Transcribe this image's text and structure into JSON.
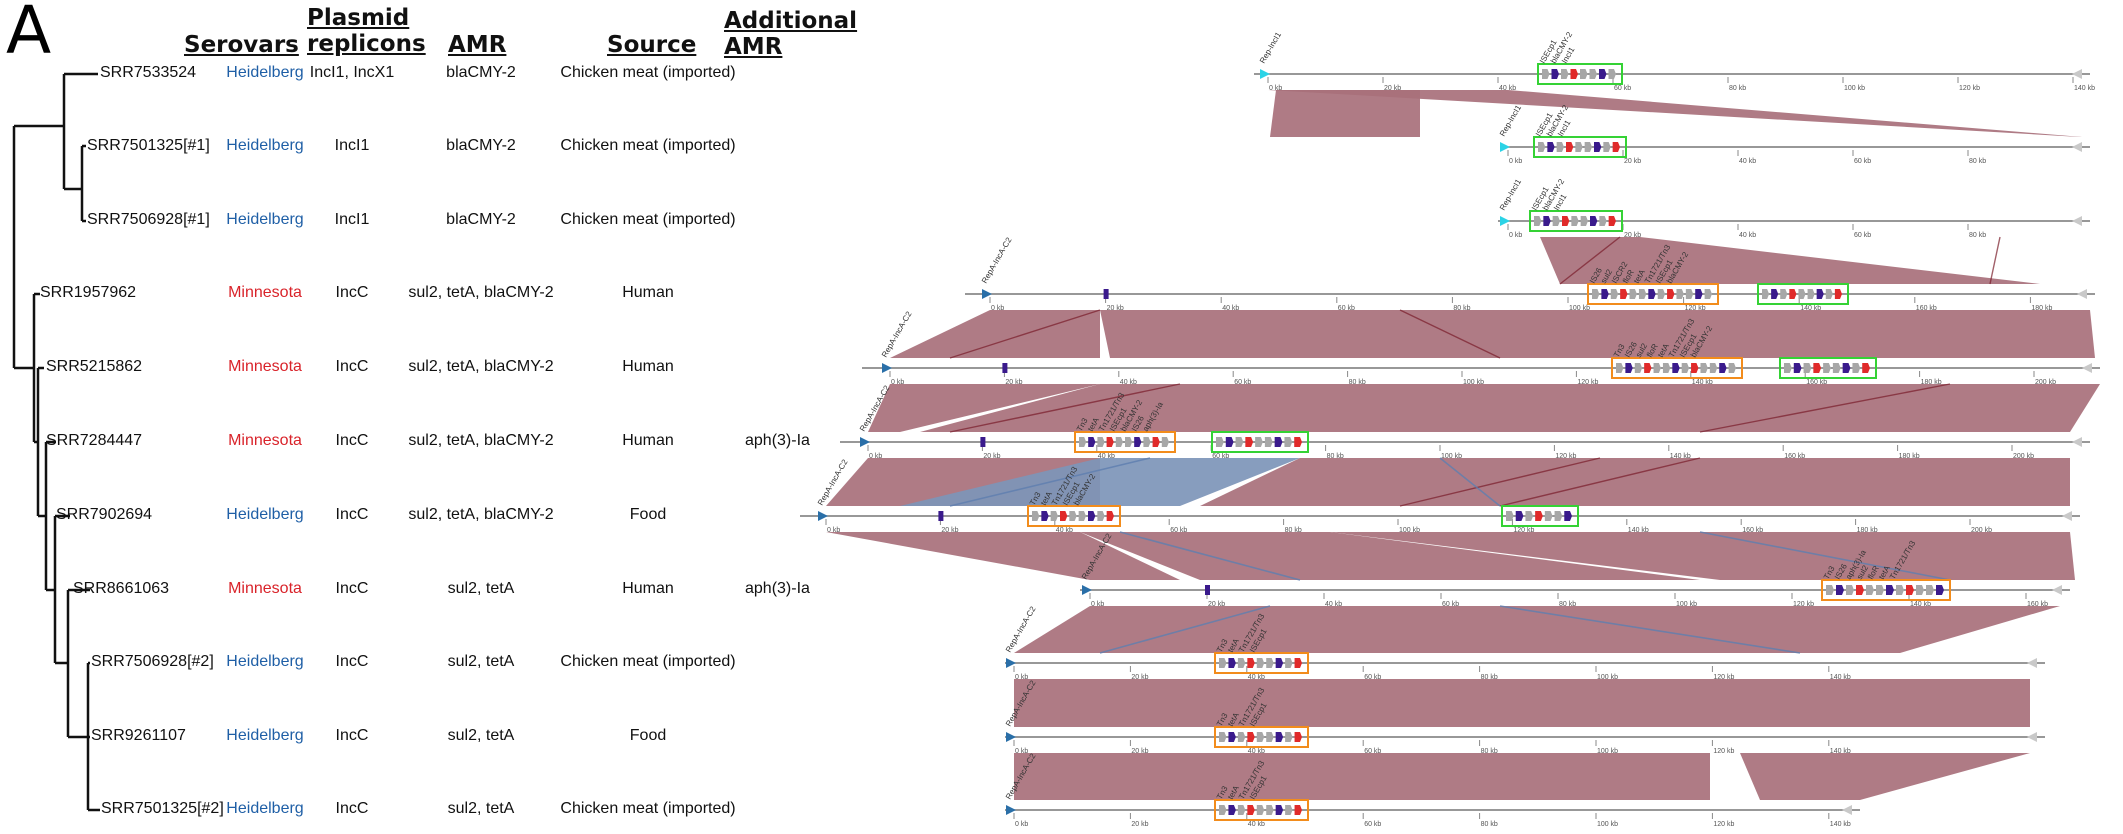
{
  "panel_label": "A",
  "headers": {
    "serovars": "Serovars",
    "plasmid_line1": "Plasmid",
    "plasmid_line2": "replicons",
    "amr": "AMR",
    "source": "Source",
    "additional_line1": "Additional",
    "additional_line2": "AMR"
  },
  "colors": {
    "heidelberg": "#1f5fa6",
    "minnesota": "#d9232a",
    "ribbon_forward": "#a8707b",
    "ribbon_inverted": "#7d95b8",
    "box_green": "#35d235",
    "box_orange": "#f28c1c",
    "gene_gray": "#a7a7a7",
    "gene_purple": "#3a1a8c",
    "gene_red": "#e02a2a",
    "rep_cyan": "#2bd3e6",
    "rep_blue": "#2a6fa8"
  },
  "rows": [
    {
      "id": "SRR7533524",
      "serovar": "Heidelberg",
      "replicons": "IncI1, IncX1",
      "amr": "blaCMY-2",
      "source": "Chicken meat (imported)",
      "additional": ""
    },
    {
      "id": "SRR7501325[#1]",
      "serovar": "Heidelberg",
      "replicons": "IncI1",
      "amr": "blaCMY-2",
      "source": "Chicken meat (imported)",
      "additional": ""
    },
    {
      "id": "SRR7506928[#1]",
      "serovar": "Heidelberg",
      "replicons": "IncI1",
      "amr": "blaCMY-2",
      "source": "Chicken meat (imported)",
      "additional": ""
    },
    {
      "id": "SRR1957962",
      "serovar": "Minnesota",
      "replicons": "IncC",
      "amr": "sul2, tetA, blaCMY-2",
      "source": "Human",
      "additional": ""
    },
    {
      "id": "SRR5215862",
      "serovar": "Minnesota",
      "replicons": "IncC",
      "amr": "sul2, tetA, blaCMY-2",
      "source": "Human",
      "additional": ""
    },
    {
      "id": "SRR7284447",
      "serovar": "Minnesota",
      "replicons": "IncC",
      "amr": "sul2, tetA, blaCMY-2",
      "source": "Human",
      "additional": "aph(3)-Ia"
    },
    {
      "id": "SRR7902694",
      "serovar": "Heidelberg",
      "replicons": "IncC",
      "amr": "sul2, tetA, blaCMY-2",
      "source": "Food",
      "additional": ""
    },
    {
      "id": "SRR8661063",
      "serovar": "Minnesota",
      "replicons": "IncC",
      "amr": "sul2, tetA",
      "source": "Human",
      "additional": "aph(3)-Ia"
    },
    {
      "id": "SRR7506928[#2]",
      "serovar": "Heidelberg",
      "replicons": "IncC",
      "amr": "sul2, tetA",
      "source": "Chicken meat (imported)",
      "additional": ""
    },
    {
      "id": "SRR9261107",
      "serovar": "Heidelberg",
      "replicons": "IncC",
      "amr": "sul2, tetA",
      "source": "Food",
      "additional": ""
    },
    {
      "id": "SRR7501325[#2]",
      "serovar": "Heidelberg",
      "replicons": "IncC",
      "amr": "sul2, tetA",
      "source": "Chicken meat (imported)",
      "additional": ""
    }
  ],
  "plasmid_maps": [
    {
      "ticks": [
        "0 kb",
        "20 kb",
        "40 kb",
        "60 kb",
        "80 kb",
        "100 kb",
        "120 kb",
        "140 kb"
      ],
      "labels": [
        "Rep-IncI1",
        "ISEcp1",
        "blaCMY-2",
        "IncI1"
      ],
      "boxes": [
        "green"
      ]
    },
    {
      "ticks": [
        "0 kb",
        "20 kb",
        "40 kb",
        "60 kb",
        "80 kb"
      ],
      "labels": [
        "Rep-IncI1",
        "ISEcp1",
        "blaCMY-2",
        "IncI1"
      ],
      "boxes": [
        "green"
      ]
    },
    {
      "ticks": [
        "0 kb",
        "20 kb",
        "40 kb",
        "60 kb",
        "80 kb"
      ],
      "labels": [
        "Rep-IncI1",
        "ISEcp1",
        "blaCMY-2",
        "IncI1"
      ],
      "boxes": [
        "green"
      ]
    },
    {
      "ticks": [
        "0 kb",
        "20 kb",
        "40 kb",
        "60 kb",
        "80 kb",
        "100 kb",
        "120 kb",
        "140 kb",
        "160 kb",
        "180 kb"
      ],
      "labels": [
        "RepA-IncA-C2",
        "IS26",
        "sul2",
        "ISCR2",
        "floR",
        "tetA",
        "Tn1721/Tn3",
        "ISEcp1",
        "blaCMY-2"
      ],
      "boxes": [
        "orange",
        "green"
      ]
    },
    {
      "ticks": [
        "0 kb",
        "20 kb",
        "40 kb",
        "60 kb",
        "80 kb",
        "100 kb",
        "120 kb",
        "140 kb",
        "160 kb",
        "180 kb",
        "200 kb"
      ],
      "labels": [
        "RepA-IncA-C2",
        "Tn3",
        "IS26",
        "sul2",
        "floR",
        "tetA",
        "Tn1721/Tn3",
        "ISEcp1",
        "blaCMY-2"
      ],
      "boxes": [
        "orange",
        "green"
      ]
    },
    {
      "ticks": [
        "0 kb",
        "20 kb",
        "40 kb",
        "60 kb",
        "80 kb",
        "100 kb",
        "120 kb",
        "140 kb",
        "160 kb",
        "180 kb",
        "200 kb"
      ],
      "labels": [
        "RepA-IncA-C2",
        "Tn3",
        "tetA",
        "Tn1721/Tn3",
        "ISEcp1",
        "blaCMY-2",
        "IS26",
        "aph(3)-Ia"
      ],
      "boxes": [
        "orange",
        "green"
      ]
    },
    {
      "ticks": [
        "0 kb",
        "20 kb",
        "40 kb",
        "60 kb",
        "80 kb",
        "100 kb",
        "120 kb",
        "140 kb",
        "160 kb",
        "180 kb",
        "200 kb"
      ],
      "labels": [
        "RepA-IncA-C2",
        "Tn3",
        "tetA",
        "Tn1721/Tn3",
        "ISEcp1",
        "blaCMY-2"
      ],
      "boxes": [
        "orange",
        "green"
      ]
    },
    {
      "ticks": [
        "0 kb",
        "20 kb",
        "40 kb",
        "60 kb",
        "80 kb",
        "100 kb",
        "120 kb",
        "140 kb",
        "160 kb"
      ],
      "labels": [
        "RepA-IncA-C2",
        "Tn3",
        "IS26",
        "aph(3)-Ia",
        "sul2",
        "floR",
        "tetA",
        "Tn1721/Tn3"
      ],
      "boxes": [
        "orange"
      ]
    },
    {
      "ticks": [
        "0 kb",
        "20 kb",
        "40 kb",
        "60 kb",
        "80 kb",
        "100 kb",
        "120 kb",
        "140 kb"
      ],
      "labels": [
        "RepA-IncA-C2",
        "Tn3",
        "tetA",
        "Tn1721/Tn3",
        "ISEcp1"
      ],
      "boxes": [
        "orange"
      ]
    },
    {
      "ticks": [
        "0 kb",
        "20 kb",
        "40 kb",
        "60 kb",
        "80 kb",
        "100 kb",
        "120 kb",
        "140 kb"
      ],
      "labels": [
        "RepA-IncA-C2",
        "Tn3",
        "tetA",
        "Tn1721/Tn3",
        "ISEcp1"
      ],
      "boxes": [
        "orange"
      ]
    },
    {
      "ticks": [
        "0 kb",
        "20 kb",
        "40 kb",
        "60 kb",
        "80 kb",
        "100 kb",
        "120 kb",
        "140 kb"
      ],
      "labels": [
        "RepA-IncA-C2",
        "Tn3",
        "tetA",
        "Tn1721/Tn3",
        "ISEcp1"
      ],
      "boxes": [
        "orange"
      ]
    }
  ]
}
